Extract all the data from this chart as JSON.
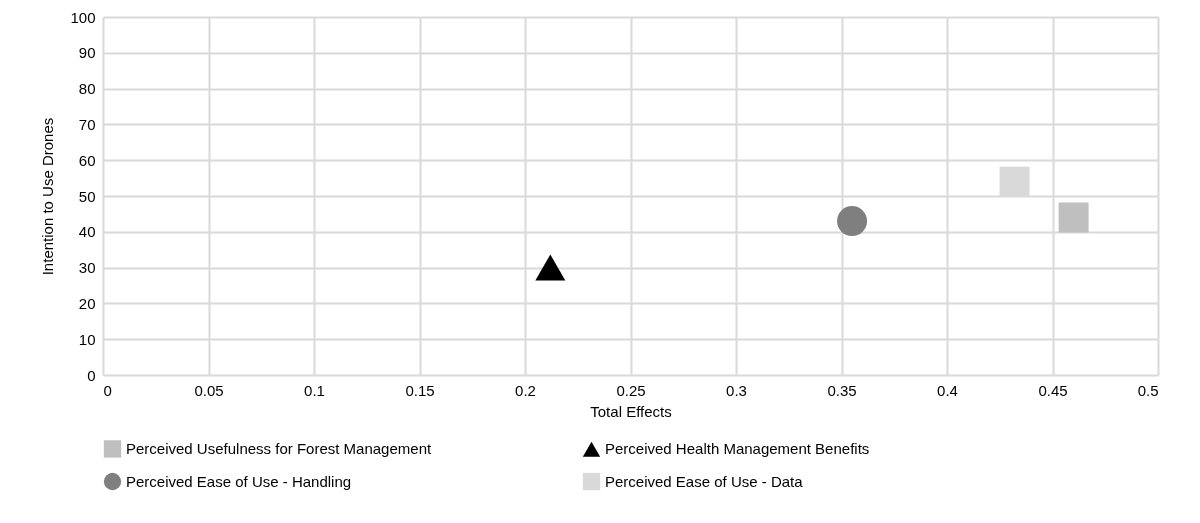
{
  "chart_data": {
    "type": "scatter",
    "xlabel": "Total Effects",
    "ylabel": "Intention to Use Drones",
    "xlim": [
      0,
      0.5
    ],
    "xticks": [
      0,
      0.05,
      0.1,
      0.15,
      0.2,
      0.25,
      0.3,
      0.35,
      0.4,
      0.45,
      0.5
    ],
    "ylim": [
      0,
      100
    ],
    "yticks": [
      0,
      10,
      20,
      30,
      40,
      50,
      60,
      70,
      80,
      90,
      100
    ],
    "grid": true,
    "legend": "bottom",
    "series": [
      {
        "name": "Perceived Usefulness for Forest Management",
        "color": "#bfbfbf",
        "marker": "square",
        "x": [
          0.46
        ],
        "values": [
          44
        ]
      },
      {
        "name": "Perceived Health Management Benefits",
        "color": "#000000",
        "marker": "triangle",
        "x": [
          0.212
        ],
        "values": [
          30
        ]
      },
      {
        "name": "Perceived Ease of Use - Handling",
        "color": "#7f7f7f",
        "marker": "circle",
        "x": [
          0.355
        ],
        "values": [
          43
        ]
      },
      {
        "name": "Perceived Ease of Use - Data",
        "color": "#d9d9d9",
        "marker": "square",
        "x": [
          0.432
        ],
        "values": [
          54
        ]
      }
    ]
  }
}
